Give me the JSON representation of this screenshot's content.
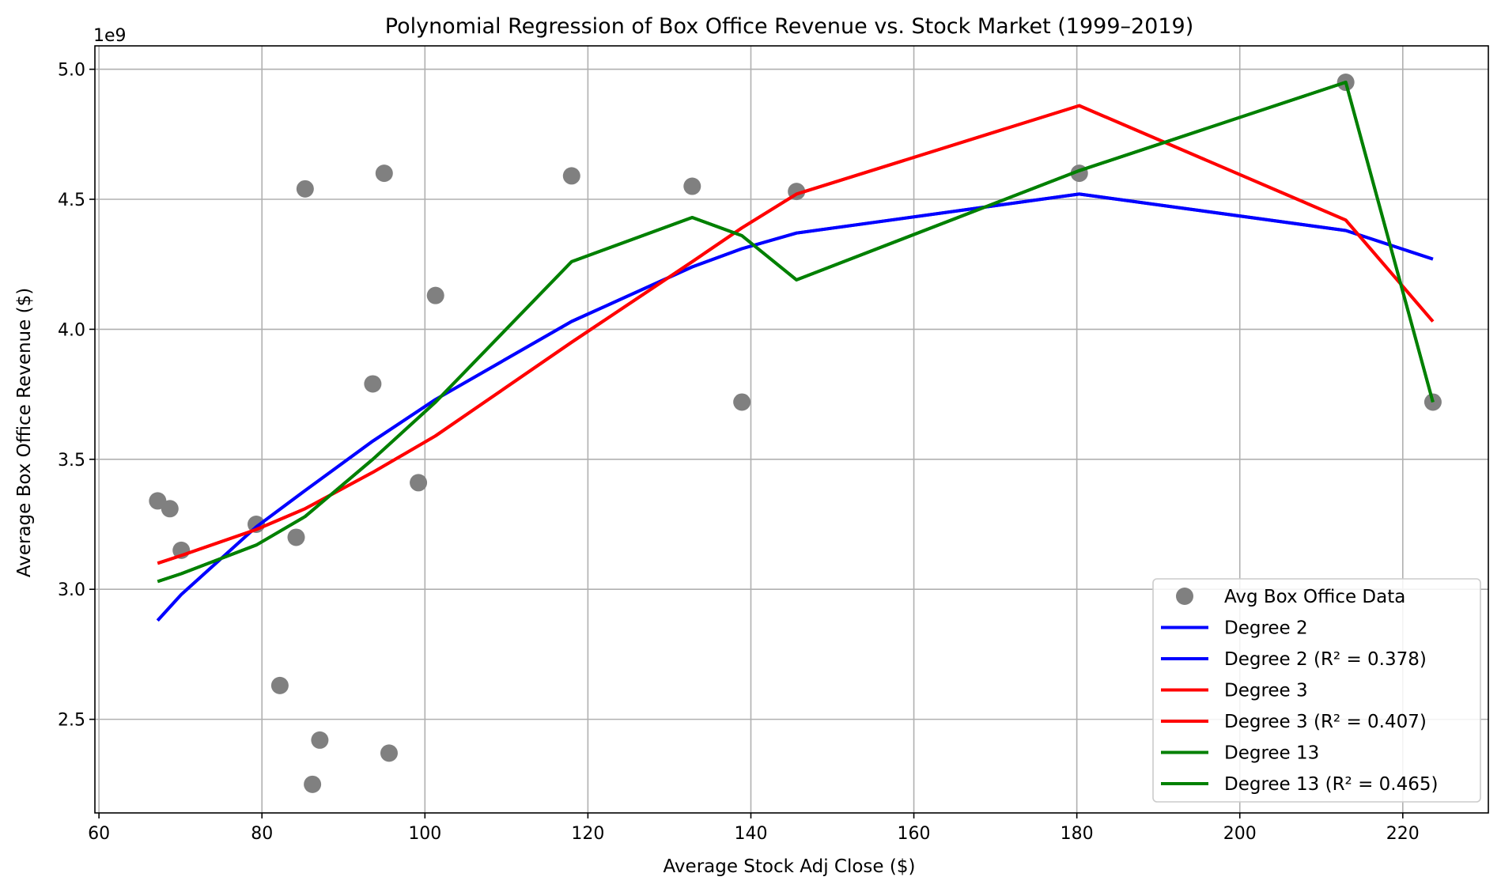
{
  "chart_data": {
    "type": "scatter",
    "title": "Polynomial Regression of Box Office Revenue vs. Stock Market (1999–2019)",
    "xlabel": "Average Stock Adj Close ($)",
    "ylabel": "Average Box Office Revenue ($)",
    "y_offset_label": "1e9",
    "xlim": [
      59.5,
      230.5
    ],
    "ylim": [
      2.14,
      5.09
    ],
    "x_ticks": [
      60,
      80,
      100,
      120,
      140,
      160,
      180,
      200,
      220
    ],
    "y_ticks": [
      2.5,
      3.0,
      3.5,
      4.0,
      4.5,
      5.0
    ],
    "x_tick_labels": [
      "60",
      "80",
      "100",
      "120",
      "140",
      "160",
      "180",
      "200",
      "220"
    ],
    "y_tick_labels": [
      "2.5",
      "3.0",
      "3.5",
      "4.0",
      "4.5",
      "5.0"
    ],
    "grid": true,
    "legend_position": "lower-right",
    "scatter": {
      "name": "Avg Box Office Data",
      "color": "#808080",
      "x": [
        67.2,
        68.7,
        70.1,
        79.3,
        82.2,
        84.2,
        85.3,
        86.2,
        87.1,
        93.6,
        95.0,
        95.6,
        99.2,
        101.3,
        118.0,
        132.8,
        138.9,
        145.6,
        180.3,
        213.0,
        223.7
      ],
      "y": [
        3.34,
        3.31,
        3.15,
        3.25,
        2.63,
        3.2,
        4.54,
        2.25,
        2.42,
        3.79,
        4.6,
        2.37,
        3.41,
        4.13,
        4.59,
        4.55,
        3.72,
        4.53,
        4.6,
        4.95,
        3.72
      ]
    },
    "series": [
      {
        "name": "Degree 2",
        "color": "#0000ff",
        "x": [
          67.2,
          70.1,
          79.3,
          85.3,
          93.6,
          101.3,
          118.0,
          132.8,
          138.9,
          145.6,
          180.3,
          213.0,
          223.7
        ],
        "y": [
          2.88,
          2.98,
          3.24,
          3.38,
          3.57,
          3.73,
          4.03,
          4.24,
          4.31,
          4.37,
          4.52,
          4.38,
          4.27
        ]
      },
      {
        "name": "Degree 2 (R² = 0.378)",
        "color": "#0000ff",
        "x": [
          67.2,
          70.1,
          79.3,
          85.3,
          93.6,
          101.3,
          118.0,
          132.8,
          138.9,
          145.6,
          180.3,
          213.0,
          223.7
        ],
        "y": [
          2.88,
          2.98,
          3.24,
          3.38,
          3.57,
          3.73,
          4.03,
          4.24,
          4.31,
          4.37,
          4.52,
          4.38,
          4.27
        ]
      },
      {
        "name": "Degree 3",
        "color": "#ff0000",
        "x": [
          67.2,
          70.1,
          79.3,
          85.3,
          93.6,
          101.3,
          118.0,
          132.8,
          138.9,
          145.6,
          180.3,
          213.0,
          223.7
        ],
        "y": [
          3.1,
          3.13,
          3.23,
          3.31,
          3.45,
          3.59,
          3.95,
          4.26,
          4.39,
          4.52,
          4.86,
          4.42,
          4.03
        ]
      },
      {
        "name": "Degree 3 (R² = 0.407)",
        "color": "#ff0000",
        "x": [
          67.2,
          70.1,
          79.3,
          85.3,
          93.6,
          101.3,
          118.0,
          132.8,
          138.9,
          145.6,
          180.3,
          213.0,
          223.7
        ],
        "y": [
          3.1,
          3.13,
          3.23,
          3.31,
          3.45,
          3.59,
          3.95,
          4.26,
          4.39,
          4.52,
          4.86,
          4.42,
          4.03
        ]
      },
      {
        "name": "Degree 13",
        "color": "#008000",
        "x": [
          67.2,
          70.1,
          79.3,
          85.3,
          93.6,
          101.3,
          118.0,
          132.8,
          138.9,
          145.6,
          180.3,
          213.0,
          223.7
        ],
        "y": [
          3.03,
          3.06,
          3.17,
          3.28,
          3.5,
          3.72,
          4.26,
          4.43,
          4.36,
          4.19,
          4.61,
          4.95,
          3.72
        ]
      },
      {
        "name": "Degree 13 (R² = 0.465)",
        "color": "#008000",
        "x": [
          67.2,
          70.1,
          79.3,
          85.3,
          93.6,
          101.3,
          118.0,
          132.8,
          138.9,
          145.6,
          180.3,
          213.0,
          223.7
        ],
        "y": [
          3.03,
          3.06,
          3.17,
          3.28,
          3.5,
          3.72,
          4.26,
          4.43,
          4.36,
          4.19,
          4.61,
          4.95,
          3.72
        ]
      }
    ]
  }
}
